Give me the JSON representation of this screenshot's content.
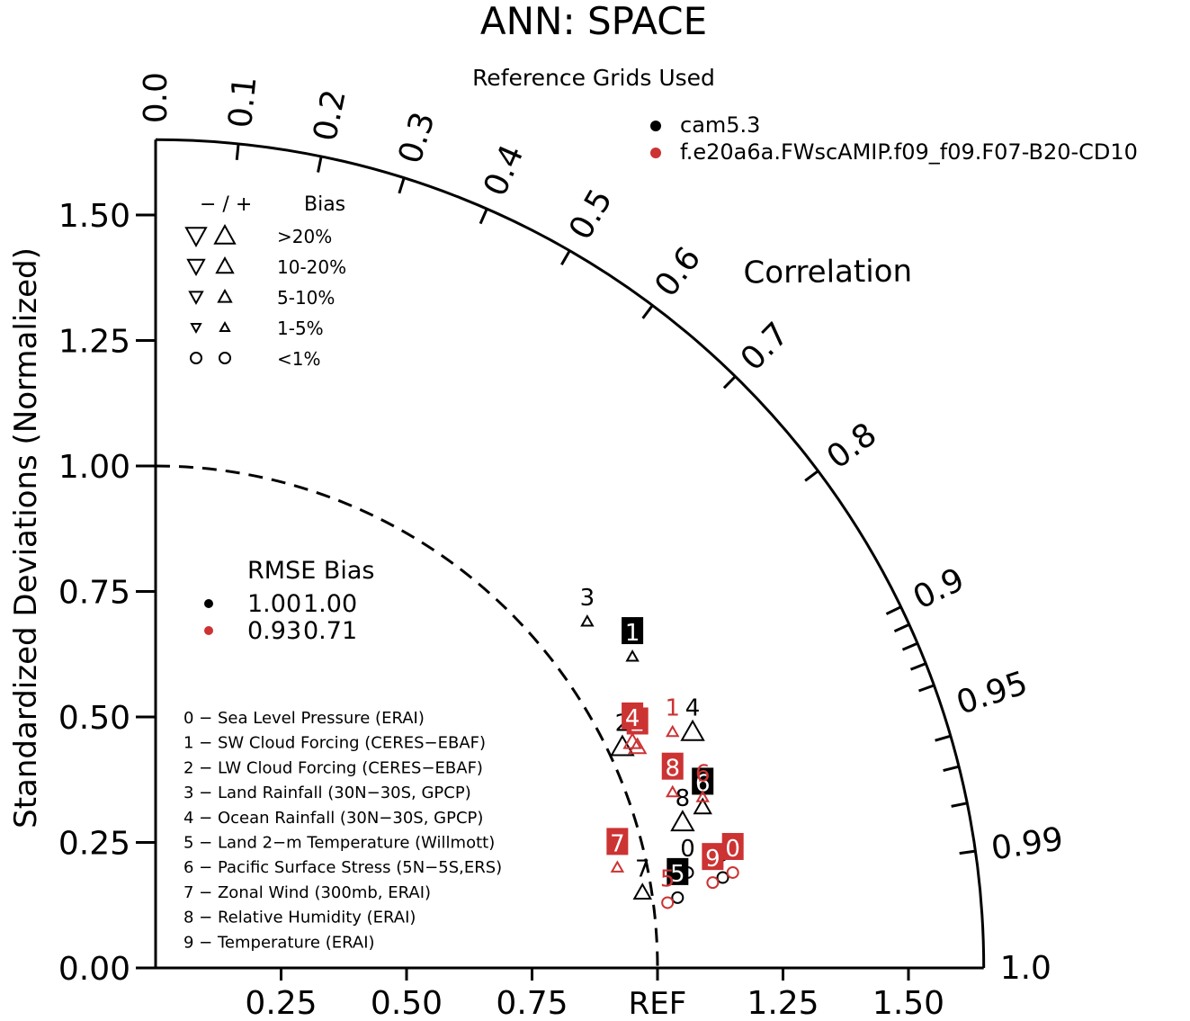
{
  "chart_data": {
    "type": "scatter",
    "subtype": "taylor-diagram",
    "title": "ANN: SPACE",
    "subtitle": "Reference Grids Used",
    "ylabel": "Standardized Deviations (Normalized)",
    "correlation_label": "Correlation",
    "ref_label": "REF",
    "ylim": [
      0,
      1.65
    ],
    "y_ticks": [
      "0.00",
      "0.25",
      "0.50",
      "0.75",
      "1.00",
      "1.25",
      "1.50"
    ],
    "x_ticks": [
      "0.25",
      "0.50",
      "0.75",
      "1.25",
      "1.50"
    ],
    "correlation_ticks": [
      "0.0",
      "0.1",
      "0.2",
      "0.3",
      "0.4",
      "0.5",
      "0.6",
      "0.7",
      "0.8",
      "0.9",
      "0.95",
      "0.99",
      "1.0"
    ],
    "reference_arc_std": 1.0,
    "legend": [
      {
        "name": "cam5.3",
        "color": "#000000"
      },
      {
        "name": "f.e20a6a.FWscAMIP.f09_f09.F07-B20-CD10",
        "color": "#cc3333"
      }
    ],
    "legend_placement": "top-right",
    "bias_legend": {
      "header_sign": "− / +",
      "header_label": "Bias",
      "rows": [
        ">20%",
        "10-20%",
        "5-10%",
        "1-5%",
        "<1%"
      ]
    },
    "rmse_table": {
      "header": "RMSE Bias",
      "rows": [
        {
          "rmse": "1.00",
          "bias": "1.00",
          "color": "#000000"
        },
        {
          "rmse": "0.93",
          "bias": "0.71",
          "color": "#cc3333"
        }
      ]
    },
    "variables": [
      "0 − Sea Level Pressure (ERAI)",
      "1 − SW Cloud Forcing (CERES−EBAF)",
      "2 − LW Cloud Forcing (CERES−EBAF)",
      "3 − Land Rainfall (30N−30S, GPCP)",
      "4 − Ocean Rainfall (30N−30S, GPCP)",
      "5 − Land 2−m Temperature (Willmott)",
      "6 − Pacific Surface Stress (5N−5S,ERS)",
      "7 − Zonal Wind (300mb, ERAI)",
      "8 − Relative Humidity (ERAI)",
      "9 − Temperature (ERAI)"
    ],
    "series": [
      {
        "name": "cam5.3",
        "color": "#000000",
        "points": [
          {
            "id": "0",
            "x": 1.06,
            "y": 0.19,
            "marker": "circle",
            "label_style": "text"
          },
          {
            "id": "1",
            "x": 0.95,
            "y": 0.62,
            "marker": "up-small",
            "label_style": "box"
          },
          {
            "id": "2",
            "x": 0.93,
            "y": 0.44,
            "marker": "up-large",
            "label_style": "text"
          },
          {
            "id": "3",
            "x": 0.86,
            "y": 0.69,
            "marker": "up-small",
            "label_style": "text"
          },
          {
            "id": "4",
            "x": 1.07,
            "y": 0.47,
            "marker": "up-large",
            "label_style": "text"
          },
          {
            "id": "5",
            "x": 1.04,
            "y": 0.14,
            "marker": "circle",
            "label_style": "box"
          },
          {
            "id": "6",
            "x": 1.09,
            "y": 0.32,
            "marker": "up-medium",
            "label_style": "box"
          },
          {
            "id": "7",
            "x": 0.97,
            "y": 0.15,
            "marker": "up-medium",
            "label_style": "text"
          },
          {
            "id": "8",
            "x": 1.05,
            "y": 0.29,
            "marker": "up-large",
            "label_style": "text"
          },
          {
            "id": "9",
            "x": 1.13,
            "y": 0.18,
            "marker": "circle",
            "label_style": "text"
          }
        ]
      },
      {
        "name": "f.e20a6a.FWscAMIP.f09_f09.F07-B20-CD10",
        "color": "#cc3333",
        "points": [
          {
            "id": "0",
            "x": 1.15,
            "y": 0.19,
            "marker": "circle",
            "label_style": "box"
          },
          {
            "id": "1",
            "x": 1.03,
            "y": 0.47,
            "marker": "up-small",
            "label_style": "text"
          },
          {
            "id": "2",
            "x": 0.96,
            "y": 0.44,
            "marker": "up-medium",
            "label_style": "box"
          },
          {
            "id": "4",
            "x": 0.95,
            "y": 0.45,
            "marker": "up-medium",
            "label_style": "box"
          },
          {
            "id": "5",
            "x": 1.02,
            "y": 0.13,
            "marker": "circle",
            "label_style": "text"
          },
          {
            "id": "6",
            "x": 1.09,
            "y": 0.34,
            "marker": "up-small",
            "label_style": "text"
          },
          {
            "id": "7",
            "x": 0.92,
            "y": 0.2,
            "marker": "up-small",
            "label_style": "box"
          },
          {
            "id": "8",
            "x": 1.03,
            "y": 0.35,
            "marker": "up-small",
            "label_style": "box"
          },
          {
            "id": "9",
            "x": 1.11,
            "y": 0.17,
            "marker": "circle",
            "label_style": "box"
          }
        ]
      }
    ]
  }
}
